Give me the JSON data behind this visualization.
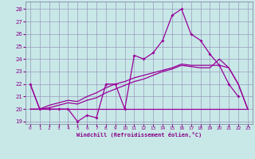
{
  "bg_color": "#c8e8e8",
  "grid_color": "#9999bb",
  "line_color": "#990099",
  "xlabel": "Windchill (Refroidissement éolien,°C)",
  "x": [
    0,
    1,
    2,
    3,
    4,
    5,
    6,
    7,
    8,
    9,
    10,
    11,
    12,
    13,
    14,
    15,
    16,
    17,
    18,
    19,
    20,
    21,
    22,
    23
  ],
  "y_spiky": [
    22,
    20,
    20,
    20,
    20,
    19,
    19.5,
    19.3,
    22,
    22,
    20,
    24.3,
    24,
    24.5,
    25.5,
    27.5,
    28,
    26,
    25.5,
    24.4,
    23.5,
    22,
    21,
    null
  ],
  "y_rise1": [
    22,
    20,
    20.3,
    20.5,
    20.7,
    20.6,
    21.0,
    21.3,
    21.7,
    22.0,
    22.2,
    22.5,
    22.7,
    22.9,
    23.1,
    23.3,
    23.6,
    23.5,
    23.5,
    23.5,
    23.5,
    23.3,
    22.0,
    20.0
  ],
  "y_rise2": [
    20,
    20,
    20.1,
    20.3,
    20.5,
    20.4,
    20.7,
    20.9,
    21.3,
    21.6,
    21.9,
    22.2,
    22.4,
    22.7,
    23.0,
    23.2,
    23.5,
    23.4,
    23.3,
    23.3,
    24.0,
    23.3,
    22.0,
    20.0
  ],
  "y_flat": [
    20,
    20,
    20,
    20,
    20,
    20,
    20,
    20,
    20,
    20,
    20,
    20,
    20,
    20,
    20,
    20,
    20,
    20,
    20,
    20,
    20,
    20,
    20,
    20
  ],
  "ylim": [
    18.8,
    28.6
  ],
  "xlim": [
    -0.5,
    23.5
  ],
  "yticks": [
    19,
    20,
    21,
    22,
    23,
    24,
    25,
    26,
    27,
    28
  ],
  "xticks": [
    0,
    1,
    2,
    3,
    4,
    5,
    6,
    7,
    8,
    9,
    10,
    11,
    12,
    13,
    14,
    15,
    16,
    17,
    18,
    19,
    20,
    21,
    22,
    23
  ],
  "xlabel_color": "#880088",
  "tick_color": "#880088"
}
